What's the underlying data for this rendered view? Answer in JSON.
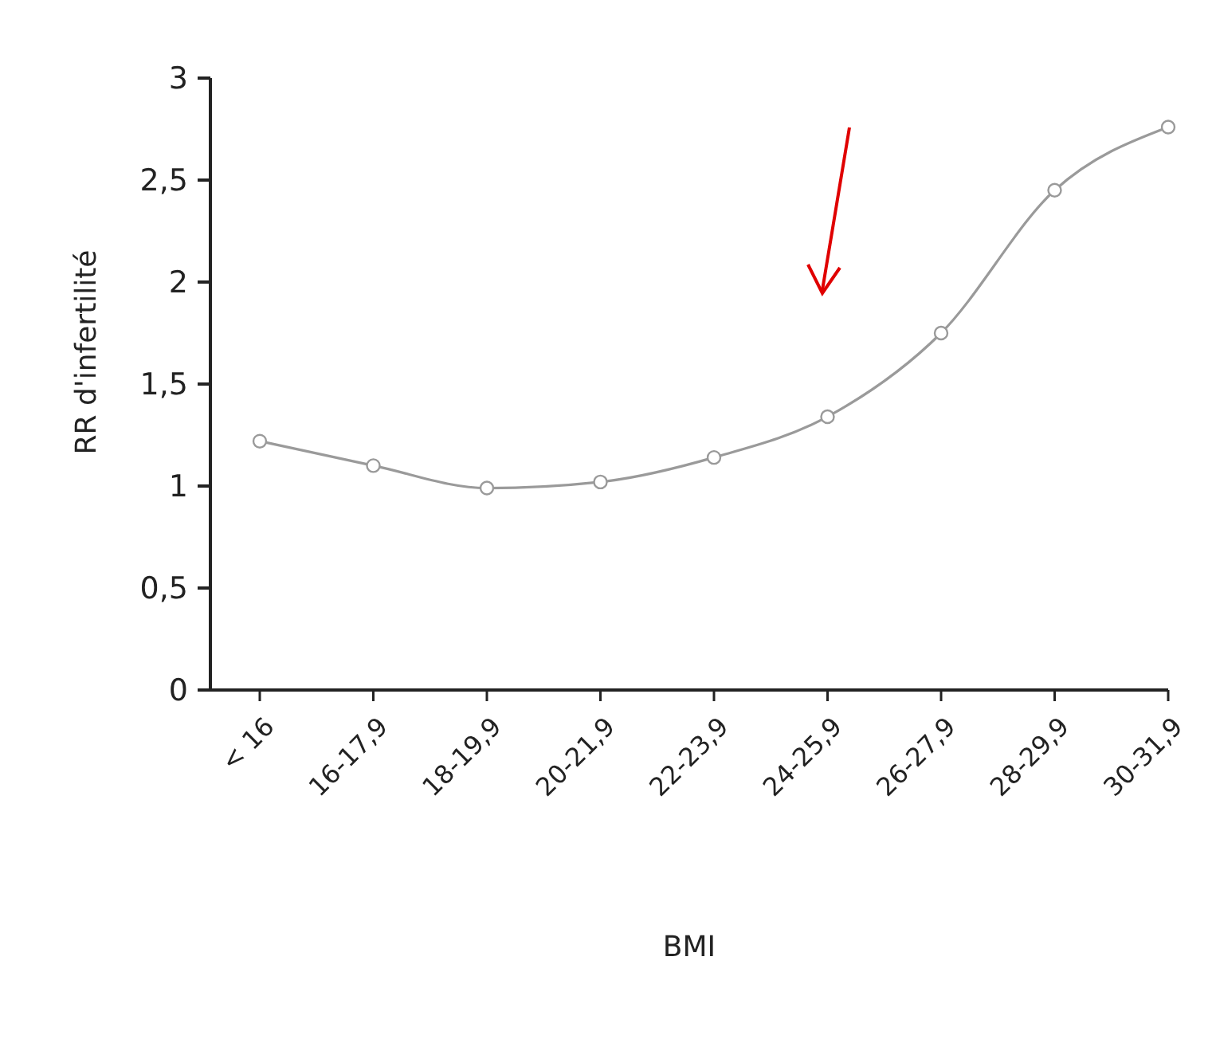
{
  "chart_data": {
    "type": "line",
    "xlabel": "BMI",
    "ylabel": "RR d'infertilité",
    "categories": [
      "< 16",
      "16-17,9",
      "18-19,9",
      "20-21,9",
      "22-23,9",
      "24-25,9",
      "26-27,9",
      "28-29,9",
      "30-31,9"
    ],
    "series": [
      {
        "color": "#9a9a9a",
        "values": [
          1.22,
          1.1,
          0.99,
          1.02,
          1.14,
          1.34,
          1.75,
          2.45,
          2.76
        ]
      }
    ],
    "ylim": [
      0,
      3
    ],
    "yticks": [
      0,
      {
        "value": 0.5,
        "label": "0,5"
      },
      1,
      {
        "value": 1.5,
        "label": "1,5"
      },
      2,
      {
        "value": 2.5,
        "label": "2,5"
      },
      3
    ],
    "marker": "circle",
    "line_style": "solid"
  }
}
